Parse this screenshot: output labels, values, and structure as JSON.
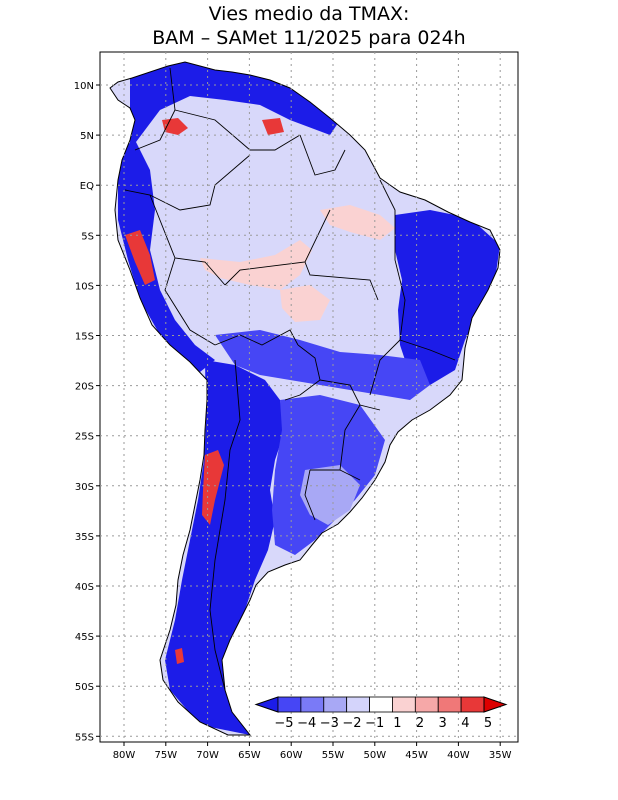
{
  "title": {
    "line1": "Vies medio da TMAX:",
    "line2": "BAM – SAMet 11/2025  para 024h"
  },
  "axes": {
    "lat_ticks": [
      "10N",
      "5N",
      "EQ",
      "5S",
      "10S",
      "15S",
      "20S",
      "25S",
      "30S",
      "35S",
      "40S",
      "45S",
      "50S",
      "55S"
    ],
    "lon_ticks": [
      "80W",
      "75W",
      "70W",
      "65W",
      "60W",
      "55W",
      "50W",
      "45W",
      "40W",
      "35W"
    ]
  },
  "colorbar": {
    "labels": [
      "−5",
      "−4",
      "−3",
      "−2",
      "−1",
      "1",
      "2",
      "3",
      "4",
      "5"
    ],
    "colors": [
      "#1c1ce8",
      "#4646f5",
      "#7a7af7",
      "#a8a8f5",
      "#d4d4fb",
      "#ffffff",
      "#fad2d2",
      "#f6a8a8",
      "#f07878",
      "#e83838",
      "#dd0000"
    ],
    "min_color": "#1c1ce8",
    "max_color": "#dd0000"
  },
  "map_colors": {
    "land_base": "#d8d8fa",
    "strong_cold": "#1c1ce8",
    "cold": "#4646f5",
    "mild_cold": "#a8a8f5",
    "warm": "#fad2d2",
    "hot": "#e83838",
    "border": "#000000",
    "grid": "#9a9a9a"
  }
}
